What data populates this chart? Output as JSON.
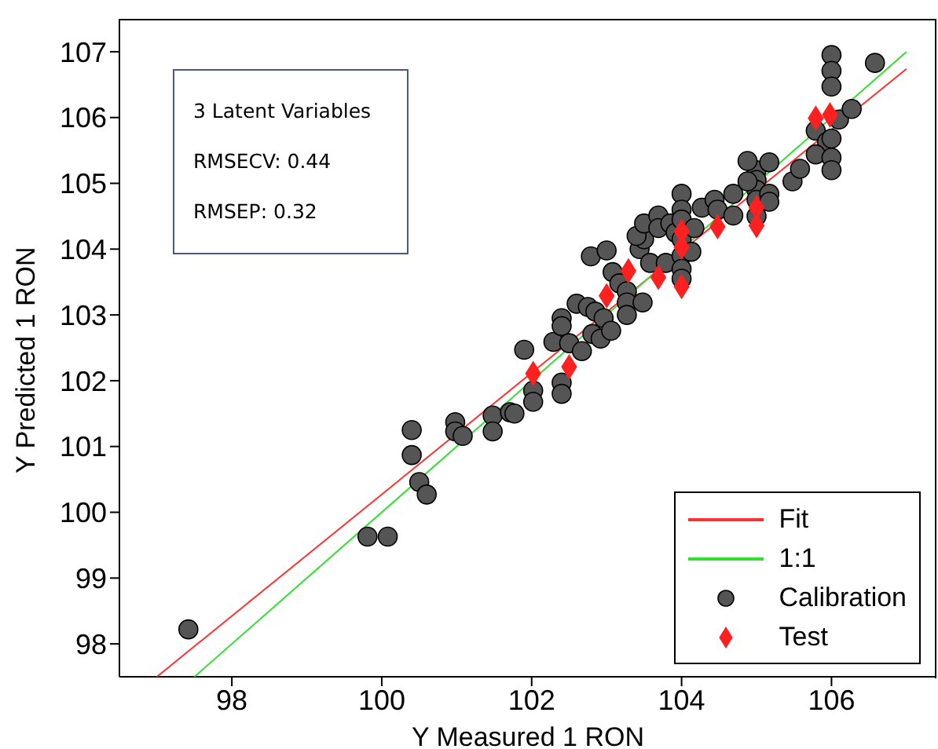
{
  "chart_data": {
    "type": "scatter",
    "xlabel": "Y Measured 1 RON",
    "ylabel": "Y Predicted 1 RON",
    "annotations": [
      "3 Latent Variables",
      "RMSECV: 0.44",
      "RMSEP: 0.32"
    ],
    "xlim": [
      96.5,
      107.4
    ],
    "ylim": [
      97.5,
      107.5
    ],
    "xticks": [
      98,
      100,
      102,
      104,
      106
    ],
    "yticks": [
      98,
      99,
      100,
      101,
      102,
      103,
      104,
      105,
      106,
      107
    ],
    "grid": false,
    "legend": "bottom right",
    "series": [
      {
        "name": "Fit",
        "type": "line",
        "color": "#ff3030",
        "x": [
          97,
          107
        ],
        "values": [
          97.5,
          106.74
        ]
      },
      {
        "name": "1:1",
        "type": "line",
        "color": "#30e030",
        "x": [
          97.5,
          107
        ],
        "values": [
          97.5,
          107
        ]
      },
      {
        "name": "Calibration",
        "marker": "circle",
        "color": "#555555",
        "x": [
          97.42,
          99.81,
          100.08,
          100.4,
          100.4,
          100.5,
          100.6,
          100.98,
          100.98,
          101.08,
          101.48,
          101.48,
          101.71,
          101.9,
          102.02,
          102.02,
          101.77,
          102.29,
          102.4,
          102.4,
          102.4,
          102.4,
          102.5,
          102.67,
          102.6,
          102.75,
          102.85,
          102.96,
          102.81,
          102.92,
          103.06,
          102.79,
          103.0,
          103.08,
          103.17,
          103.27,
          103.27,
          103.27,
          103.44,
          103.5,
          103.4,
          103.5,
          103.69,
          103.69,
          103.48,
          103.58,
          103.79,
          103.85,
          103.92,
          104,
          104,
          104,
          104,
          104,
          104,
          104,
          104.13,
          104.17,
          104.27,
          104.44,
          104.48,
          104.69,
          104.69,
          105,
          105,
          105,
          105,
          105,
          104.88,
          105.17,
          105.17,
          105.17,
          104.88,
          105.48,
          105.58,
          106,
          106,
          106,
          105.79,
          105.94,
          106,
          105.79,
          106,
          106,
          106.1,
          106.27,
          106.58
        ],
        "values": [
          98.22,
          99.63,
          99.63,
          101.25,
          100.87,
          100.46,
          100.27,
          101.37,
          101.23,
          101.16,
          101.47,
          101.23,
          101.52,
          102.47,
          101.85,
          101.68,
          101.5,
          102.59,
          102.95,
          102.83,
          101.97,
          101.8,
          102.57,
          102.45,
          103.17,
          103.12,
          103.05,
          102.95,
          102.71,
          102.64,
          102.76,
          103.89,
          103.98,
          103.65,
          103.48,
          103.36,
          103.19,
          103.0,
          104.0,
          104.15,
          104.2,
          104.39,
          104.51,
          104.32,
          103.19,
          103.79,
          103.79,
          104.39,
          104.25,
          104.84,
          104.6,
          104.45,
          104.15,
          103.9,
          103.7,
          103.55,
          103.96,
          104.32,
          104.63,
          104.75,
          104.6,
          104.51,
          104.84,
          105.2,
          105.05,
          104.9,
          104.75,
          104.5,
          105.34,
          105.32,
          104.84,
          104.72,
          105.03,
          105.03,
          105.22,
          106.95,
          106.71,
          106.47,
          105.8,
          105.63,
          105.68,
          105.44,
          105.39,
          105.2,
          105.97,
          106.13,
          106.83
        ]
      },
      {
        "name": "Test",
        "marker": "diamond",
        "color": "#ff2020",
        "x": [
          102.02,
          102.5,
          103.0,
          103.29,
          103.69,
          104,
          104,
          104,
          104.48,
          105,
          105,
          105.79,
          105.98
        ],
        "values": [
          102.11,
          102.21,
          103.29,
          103.67,
          103.57,
          104.27,
          104.03,
          103.43,
          104.34,
          104.63,
          104.36,
          105.99,
          106.04
        ]
      }
    ]
  }
}
